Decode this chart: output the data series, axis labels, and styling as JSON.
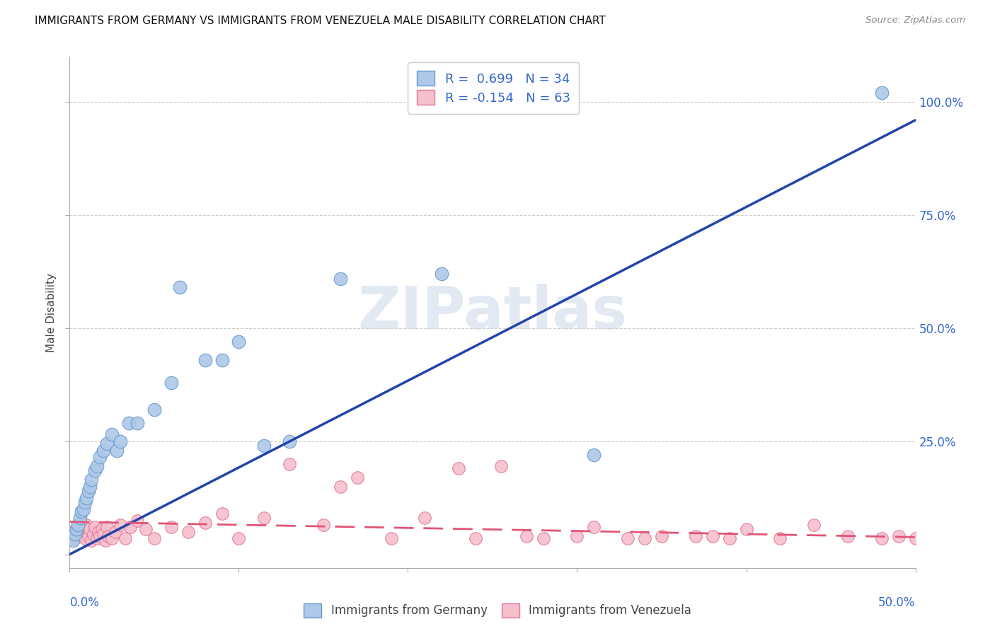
{
  "title": "IMMIGRANTS FROM GERMANY VS IMMIGRANTS FROM VENEZUELA MALE DISABILITY CORRELATION CHART",
  "source": "Source: ZipAtlas.com",
  "ylabel": "Male Disability",
  "xlim": [
    0.0,
    0.5
  ],
  "ylim": [
    -0.03,
    1.1
  ],
  "yticks": [
    0.0,
    0.25,
    0.5,
    0.75,
    1.0
  ],
  "ytick_labels": [
    "",
    "25.0%",
    "50.0%",
    "75.0%",
    "100.0%"
  ],
  "xticks": [
    0.0,
    0.1,
    0.2,
    0.3,
    0.4,
    0.5
  ],
  "watermark": "ZIPatlas",
  "germany_color": "#adc8e8",
  "germany_edge": "#6699cc",
  "venezuela_color": "#f5bfcc",
  "venezuela_edge": "#e07898",
  "germany_line_color": "#2244aa",
  "venezuela_line_color": "#e05575",
  "legend_germany": "R =  0.699   N = 34",
  "legend_venezuela": "R = -0.154   N = 63",
  "R_germany": 0.699,
  "R_venezuela": -0.154,
  "germany_line_x0": 0.0,
  "germany_line_y0": 0.0,
  "germany_line_x1": 0.5,
  "germany_line_y1": 0.96,
  "venezuela_line_x0": 0.0,
  "venezuela_line_y0": 0.072,
  "venezuela_line_x1": 0.5,
  "venezuela_line_y1": 0.038,
  "germany_points_x": [
    0.002,
    0.003,
    0.004,
    0.005,
    0.006,
    0.007,
    0.008,
    0.009,
    0.01,
    0.011,
    0.012,
    0.013,
    0.015,
    0.016,
    0.018,
    0.02,
    0.022,
    0.025,
    0.028,
    0.03,
    0.035,
    0.04,
    0.05,
    0.06,
    0.065,
    0.08,
    0.09,
    0.1,
    0.115,
    0.13,
    0.16,
    0.22,
    0.31,
    0.48
  ],
  "germany_points_y": [
    0.03,
    0.045,
    0.055,
    0.065,
    0.08,
    0.095,
    0.1,
    0.115,
    0.125,
    0.14,
    0.15,
    0.165,
    0.185,
    0.195,
    0.215,
    0.23,
    0.245,
    0.265,
    0.23,
    0.25,
    0.29,
    0.29,
    0.32,
    0.38,
    0.59,
    0.43,
    0.43,
    0.47,
    0.24,
    0.25,
    0.61,
    0.62,
    0.22,
    1.02
  ],
  "venezuela_points_x": [
    0.001,
    0.002,
    0.003,
    0.004,
    0.005,
    0.006,
    0.007,
    0.008,
    0.009,
    0.01,
    0.011,
    0.012,
    0.013,
    0.014,
    0.015,
    0.016,
    0.017,
    0.018,
    0.019,
    0.02,
    0.021,
    0.022,
    0.023,
    0.025,
    0.027,
    0.03,
    0.033,
    0.036,
    0.04,
    0.045,
    0.05,
    0.06,
    0.07,
    0.08,
    0.09,
    0.1,
    0.115,
    0.13,
    0.15,
    0.17,
    0.19,
    0.21,
    0.23,
    0.255,
    0.28,
    0.31,
    0.34,
    0.37,
    0.38,
    0.39,
    0.4,
    0.42,
    0.44,
    0.46,
    0.48,
    0.49,
    0.5,
    0.35,
    0.33,
    0.3,
    0.27,
    0.24,
    0.16
  ],
  "venezuela_points_y": [
    0.04,
    0.05,
    0.035,
    0.045,
    0.055,
    0.04,
    0.06,
    0.05,
    0.035,
    0.065,
    0.04,
    0.055,
    0.03,
    0.045,
    0.06,
    0.035,
    0.05,
    0.04,
    0.055,
    0.045,
    0.03,
    0.06,
    0.04,
    0.035,
    0.05,
    0.065,
    0.035,
    0.06,
    0.075,
    0.055,
    0.035,
    0.06,
    0.05,
    0.07,
    0.09,
    0.035,
    0.08,
    0.2,
    0.065,
    0.17,
    0.035,
    0.08,
    0.19,
    0.195,
    0.035,
    0.06,
    0.035,
    0.04,
    0.04,
    0.035,
    0.055,
    0.035,
    0.065,
    0.04,
    0.035,
    0.04,
    0.035,
    0.04,
    0.035,
    0.04,
    0.04,
    0.035,
    0.15
  ]
}
